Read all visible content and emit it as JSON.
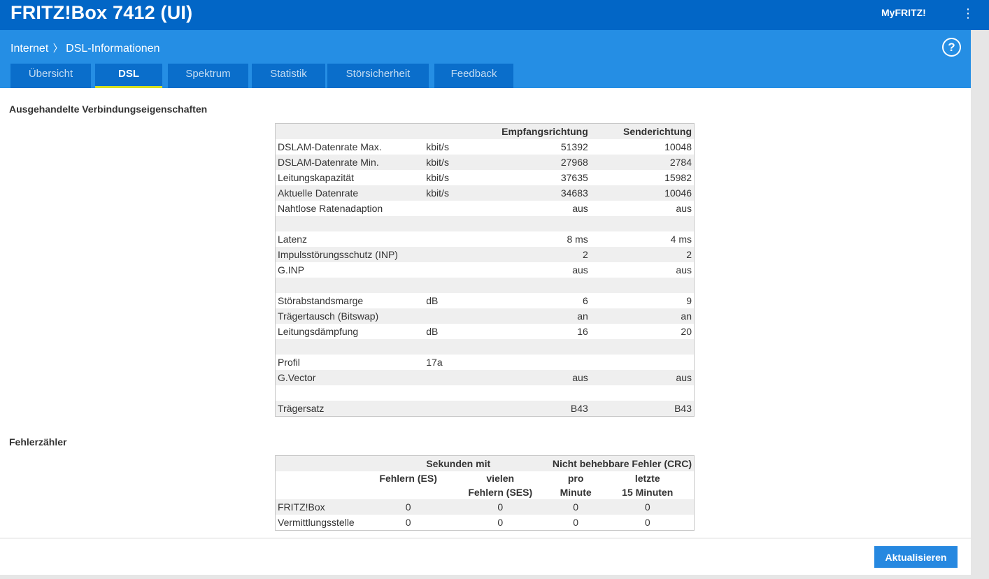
{
  "app": {
    "title": "FRITZ!Box 7412 (UI)",
    "myfritz_label": "MyFRITZ!",
    "menu_icon": "kebab-menu-icon"
  },
  "breadcrumb": {
    "parent": "Internet",
    "separator": "〉",
    "current": "DSL-Informationen",
    "help_icon": "help-icon",
    "help_label": "?"
  },
  "tabs": [
    {
      "label": "Übersicht",
      "active": false
    },
    {
      "label": "DSL",
      "active": true
    },
    {
      "label": "Spektrum",
      "active": false
    },
    {
      "label": "Statistik",
      "active": false
    },
    {
      "label": "Störsicherheit",
      "active": false
    },
    {
      "label": "Feedback",
      "active": false
    }
  ],
  "connection": {
    "section_title": "Ausgehandelte Verbindungseigenschaften",
    "headers": {
      "receive": "Empfangsrichtung",
      "send": "Senderichtung"
    },
    "rows": [
      {
        "label": "DSLAM-Datenrate Max.",
        "unit": "kbit/s",
        "receive": "51392",
        "send": "10048"
      },
      {
        "label": "DSLAM-Datenrate Min.",
        "unit": "kbit/s",
        "receive": "27968",
        "send": "2784"
      },
      {
        "label": "Leitungskapazität",
        "unit": "kbit/s",
        "receive": "37635",
        "send": "15982"
      },
      {
        "label": "Aktuelle Datenrate",
        "unit": "kbit/s",
        "receive": "34683",
        "send": "10046"
      },
      {
        "label": "Nahtlose Ratenadaption",
        "unit": "",
        "receive": "aus",
        "send": "aus"
      },
      {
        "label": "",
        "unit": "",
        "receive": "",
        "send": ""
      },
      {
        "label": "Latenz",
        "unit": "",
        "receive": "8 ms",
        "send": "4 ms"
      },
      {
        "label": "Impulsstörungsschutz (INP)",
        "unit": "",
        "receive": "2",
        "send": "2"
      },
      {
        "label": "G.INP",
        "unit": "",
        "receive": "aus",
        "send": "aus"
      },
      {
        "label": "",
        "unit": "",
        "receive": "",
        "send": ""
      },
      {
        "label": "Störabstandsmarge",
        "unit": "dB",
        "receive": "6",
        "send": "9"
      },
      {
        "label": "Trägertausch (Bitswap)",
        "unit": "",
        "receive": "an",
        "send": "an"
      },
      {
        "label": "Leitungsdämpfung",
        "unit": "dB",
        "receive": "16",
        "send": "20"
      },
      {
        "label": "",
        "unit": "",
        "receive": "",
        "send": ""
      },
      {
        "label": "Profil",
        "unit": "17a",
        "receive": "",
        "send": ""
      },
      {
        "label": "G.Vector",
        "unit": "",
        "receive": "aus",
        "send": "aus"
      },
      {
        "label": "",
        "unit": "",
        "receive": "",
        "send": ""
      },
      {
        "label": "Trägersatz",
        "unit": "",
        "receive": "B43",
        "send": "B43"
      }
    ]
  },
  "errors": {
    "section_title": "Fehlerzähler",
    "group_headers": {
      "seconds_with": "Sekunden mit",
      "crc": "Nicht behebbare Fehler (CRC)"
    },
    "col_headers": {
      "es": "Fehlern (ES)",
      "ses_line1": "vielen",
      "ses_line2": "Fehlern (SES)",
      "per_min_line1": "pro",
      "per_min_line2": "Minute",
      "last15_line1": "letzte",
      "last15_line2": "15 Minuten"
    },
    "rows": [
      {
        "label": "FRITZ!Box",
        "es": "0",
        "ses": "0",
        "per_min": "0",
        "last15": "0"
      },
      {
        "label": "Vermittlungsstelle",
        "es": "0",
        "ses": "0",
        "per_min": "0",
        "last15": "0"
      }
    ]
  },
  "footer": {
    "refresh_label": "Aktualisieren"
  },
  "colors": {
    "topbar": "#0266c6",
    "subbar": "#258ee4",
    "tab_bg": "#0a6ecb",
    "tab_active_underline": "#d6e021",
    "button": "#2688e0"
  }
}
